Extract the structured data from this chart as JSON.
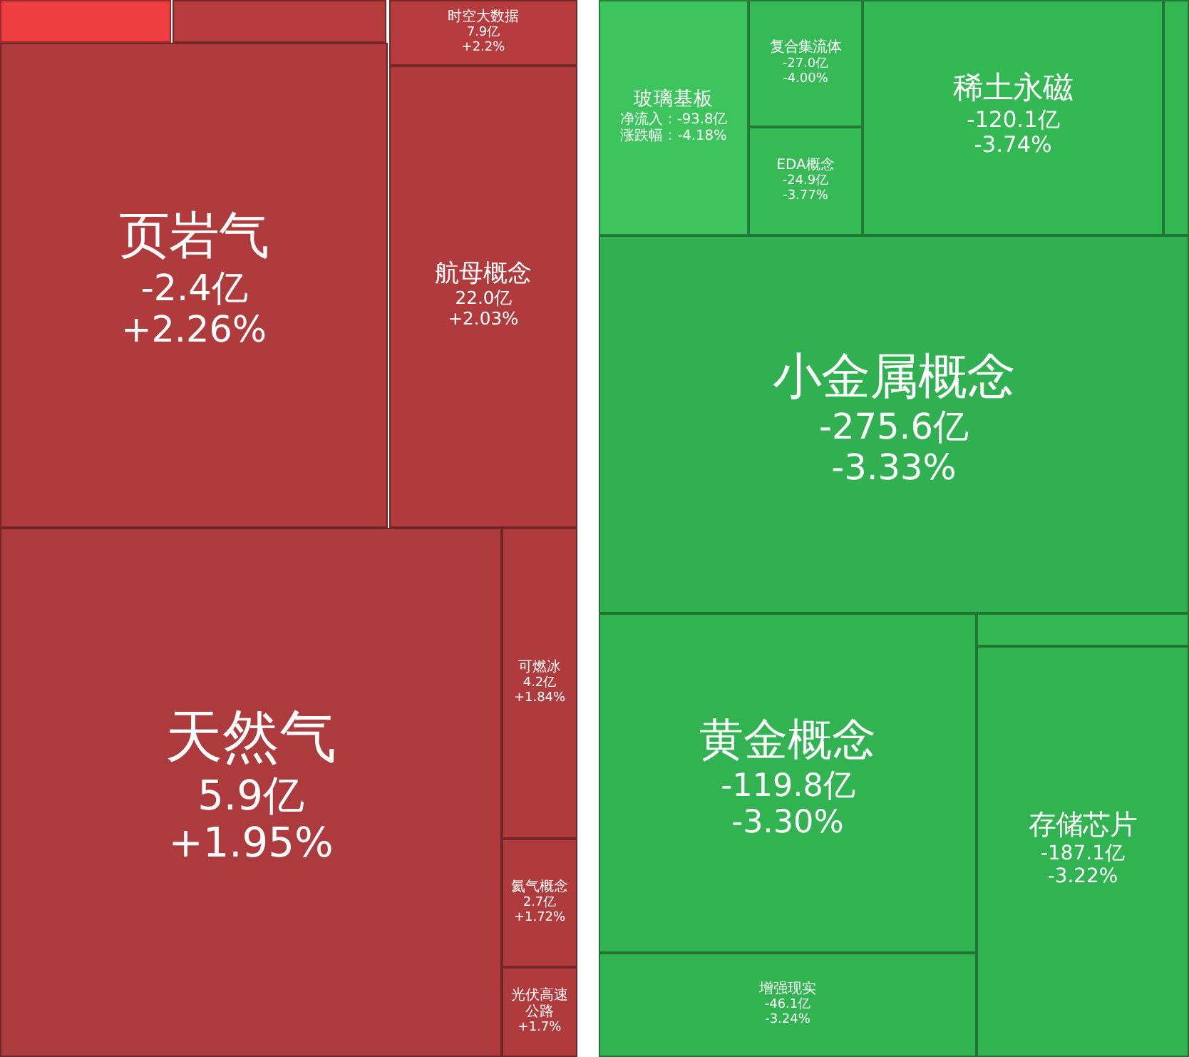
{
  "chart_data": {
    "type": "other",
    "categories": [
      null,
      null,
      "时空大数据",
      "页岩气",
      "航母概念",
      "天然气",
      "可燃冰",
      "氦气概念",
      "光伏高速公路",
      "玻璃基板",
      "复合集流体",
      "EDA概念",
      "稀土永磁",
      null,
      "小金属概念",
      "黄金概念",
      null,
      "存储芯片",
      "增强现实"
    ],
    "series": [
      {
        "colors": [
          "#ee3e3f",
          "#b53b3d",
          "#b53b3d",
          "#b03b3d",
          "#b03b3d",
          "#ad3a3c",
          "#b03b3d",
          "#b03b3d",
          "#b03b3d",
          "#3ec45c",
          "#36ba55",
          "#36ba55",
          "#34b853",
          "#34b853",
          "#30b050",
          "#31b352",
          "#34b853",
          "#31b352",
          "#31b352"
        ],
        "values": [
          null,
          null,
          7.9,
          -2.4,
          22.0,
          5.9,
          4.2,
          2.7,
          null,
          -93.8,
          -27.0,
          -24.9,
          -120.1,
          null,
          -275.6,
          -119.8,
          null,
          -187.1,
          -46.1
        ],
        "value_labels": [
          null,
          null,
          "7.9亿",
          "-2.4亿",
          "22.0亿",
          "5.9亿",
          "4.2亿",
          "2.7亿",
          null,
          "净流入：-93.8亿",
          "-27.0亿",
          "-24.9亿",
          "-120.1亿",
          null,
          "-275.6亿",
          "-119.8亿",
          null,
          "-187.1亿",
          "-46.1亿"
        ]
      },
      {
        "values": [
          null,
          null,
          2.2,
          2.26,
          2.03,
          1.95,
          1.84,
          1.72,
          1.7,
          -4.18,
          -4.0,
          -3.77,
          -3.74,
          null,
          -3.33,
          -3.3,
          null,
          -3.22,
          -3.24
        ],
        "value_labels": [
          null,
          null,
          "+2.2%",
          "+2.26%",
          "+2.03%",
          "+1.95%",
          "+1.84%",
          "+1.72%",
          "+1.7%",
          "涨跌幅：-4.18%",
          "-4.00%",
          "-3.77%",
          "-3.74%",
          null,
          "-3.33%",
          "-3.30%",
          null,
          "-3.22%",
          "-3.24%"
        ]
      }
    ]
  }
}
